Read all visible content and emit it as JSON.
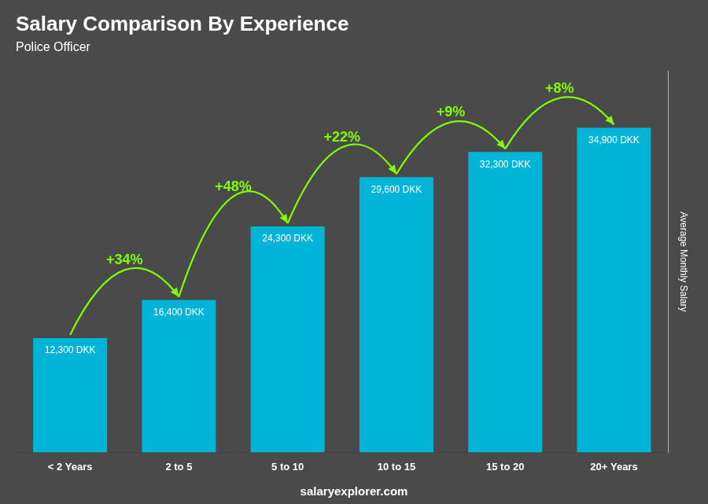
{
  "chart_data": {
    "type": "bar",
    "title": "Salary Comparison By Experience",
    "subtitle": "Police Officer",
    "categories": [
      "< 2 Years",
      "2 to 5",
      "5 to 10",
      "10 to 15",
      "15 to 20",
      "20+ Years"
    ],
    "values": [
      12300,
      16400,
      24300,
      29600,
      32300,
      34900
    ],
    "value_labels": [
      "12,300 DKK",
      "16,400 DKK",
      "24,300 DKK",
      "29,600 DKK",
      "32,300 DKK",
      "34,900 DKK"
    ],
    "data_labels": true,
    "color": "#00B4D8",
    "ylabel": "Average Monthly Salary",
    "ylim": [
      0,
      41000
    ],
    "tick_labels": "x",
    "grid": false,
    "annotations": [
      "+34%",
      "+48%",
      "+22%",
      "+9%",
      "+8%"
    ],
    "watermark": "salaryexplorer.com"
  }
}
